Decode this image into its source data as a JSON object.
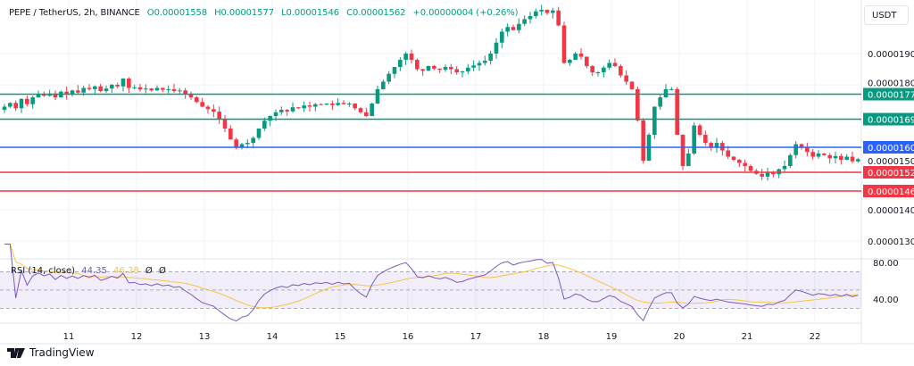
{
  "header": {
    "symbol": "PEPE / TetherUS, 2h, BINANCE",
    "open": "O0.00001558",
    "high": "H0.00001577",
    "low": "L0.00001546",
    "close": "C0.00001562",
    "change": "+0.00000004 (+0.26%)"
  },
  "currency_button": "USDT",
  "footer": {
    "brand": "TradingView"
  },
  "rsi_legend": {
    "title": "RSI (14, close)",
    "rsi_value": "44.35",
    "ma_value": "46.28",
    "extra1": "Ø",
    "extra2": "Ø"
  },
  "colors": {
    "up": "#089981",
    "down": "#f23645",
    "blue": "#2962ff",
    "rsi": "#7e57c2",
    "rsi_ma": "#f5c542"
  },
  "chart_data": {
    "type": "candlestick",
    "title": "PEPE / TetherUS, 2h, BINANCE",
    "price_unit": 1e-08,
    "y_ticks": [
      "0.0000190",
      "0.0000180",
      "0.0000150",
      "0.0000140",
      "0.0000130"
    ],
    "y_tick_values": [
      1900,
      1800,
      1500,
      1400,
      1300
    ],
    "x_ticks": [
      "11",
      "12",
      "13",
      "14",
      "15",
      "16",
      "17",
      "18",
      "19",
      "20",
      "21",
      "22"
    ],
    "candles_per_day": 12,
    "first_day_tick_index": 11.3,
    "closes": [
      1730,
      1742,
      1725,
      1755,
      1738,
      1760,
      1770,
      1765,
      1772,
      1760,
      1778,
      1770,
      1782,
      1775,
      1790,
      1786,
      1795,
      1780,
      1788,
      1800,
      1795,
      1820,
      1790,
      1792,
      1785,
      1788,
      1782,
      1790,
      1784,
      1786,
      1780,
      1782,
      1770,
      1760,
      1745,
      1730,
      1722,
      1714,
      1690,
      1660,
      1625,
      1600,
      1610,
      1614,
      1630,
      1660,
      1685,
      1700,
      1712,
      1720,
      1715,
      1728,
      1725,
      1734,
      1730,
      1738,
      1736,
      1740,
      1735,
      1742,
      1738,
      1740,
      1725,
      1712,
      1700,
      1740,
      1786,
      1810,
      1835,
      1857,
      1880,
      1900,
      1880,
      1850,
      1845,
      1860,
      1852,
      1848,
      1857,
      1850,
      1840,
      1843,
      1855,
      1862,
      1870,
      1877,
      1900,
      1935,
      1970,
      1985,
      1975,
      1995,
      2010,
      2020,
      2035,
      2040,
      2030,
      2038,
      1990,
      1870,
      1880,
      1900,
      1890,
      1860,
      1840,
      1840,
      1855,
      1870,
      1860,
      1830,
      1810,
      1786,
      1686,
      1557,
      1640,
      1730,
      1760,
      1786,
      1786,
      1640,
      1540,
      1580,
      1670,
      1640,
      1614,
      1600,
      1614,
      1590,
      1570,
      1560,
      1550,
      1540,
      1525,
      1515,
      1506,
      1520,
      1514,
      1530,
      1540,
      1575,
      1610,
      1600,
      1585,
      1570,
      1580,
      1575,
      1565,
      1572,
      1560,
      1570,
      1555,
      1562
    ],
    "levels": [
      {
        "label": "0.0000177",
        "value": 1770,
        "color": "#089981"
      },
      {
        "label": "0.0000169",
        "value": 1690,
        "color": "#089981"
      },
      {
        "label": "0.0000160",
        "value": 1600,
        "color": "#2962ff"
      },
      {
        "label": "0.0000152",
        "value": 1520,
        "color": "#f23645"
      },
      {
        "label": "0.0000146",
        "value": 1460,
        "color": "#f23645"
      }
    ],
    "rsi": {
      "period": 14,
      "ma_period": 14,
      "ticks": [
        "80.00",
        "40.00"
      ],
      "tick_values": [
        80,
        40
      ],
      "bands": [
        70,
        50,
        30
      ]
    }
  }
}
